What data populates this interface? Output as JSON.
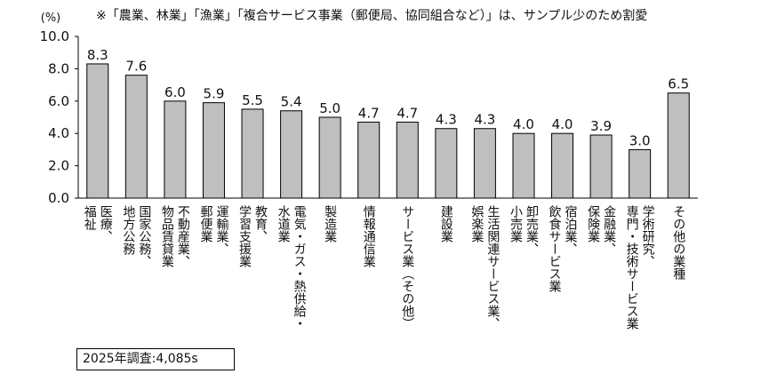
{
  "note": "※「農業、林業」「漁業」「複合サービス事業（郵便局、協同組合など）」は、サンプル少のため割愛",
  "sample_label": "2025年調査:4,085s",
  "chart_data": {
    "type": "bar",
    "y_unit": "(%)",
    "ylim": [
      0,
      10
    ],
    "yticks": [
      "0.0",
      "2.0",
      "4.0",
      "6.0",
      "8.0",
      "10.0"
    ],
    "grid": false,
    "bar_color": "#bfbfbf",
    "categories": [
      "医療、福祉",
      "国家公務、地方公務",
      "不動産業、物品賃貸業",
      "運輸業、郵便業",
      "教育、学習支援業",
      "電気・ガス・熱供給・水道業",
      "製造業",
      "情報通信業",
      "サービス業（その他）",
      "建設業",
      "生活関連サービス業、娯楽業",
      "卸売業、小売業",
      "宿泊業、飲食サービス業",
      "金融業、保険業",
      "学術研究、専門・技術サービス業",
      "その他の業種"
    ],
    "values": [
      8.3,
      7.6,
      6.0,
      5.9,
      5.5,
      5.4,
      5.0,
      4.7,
      4.7,
      4.3,
      4.3,
      4.0,
      4.0,
      3.9,
      3.0,
      6.5
    ],
    "value_labels": [
      "8.3",
      "7.6",
      "6.0",
      "5.9",
      "5.5",
      "5.4",
      "5.0",
      "4.7",
      "4.7",
      "4.3",
      "4.3",
      "4.0",
      "4.0",
      "3.9",
      "3.0",
      "6.5"
    ],
    "label_columns": [
      [
        "医療、",
        "福祉"
      ],
      [
        "国家公務、",
        "地方公務"
      ],
      [
        "不動産業、",
        "物品賃貸業"
      ],
      [
        "運輸業、",
        "郵便業"
      ],
      [
        "教育、",
        "学習支援業"
      ],
      [
        "電気・ガス・熱供給・",
        "水道業"
      ],
      [
        "製造業"
      ],
      [
        "情報通信業"
      ],
      [
        "サービス業（その他）"
      ],
      [
        "建設業"
      ],
      [
        "生活関連サービス業、",
        "娯楽業"
      ],
      [
        "卸売業、",
        "小売業"
      ],
      [
        "宿泊業、",
        "飲食サービス業"
      ],
      [
        "金融業、",
        "保険業"
      ],
      [
        "学術研究、",
        "専門・技術サービス業"
      ],
      [
        "その他の業種"
      ]
    ]
  }
}
